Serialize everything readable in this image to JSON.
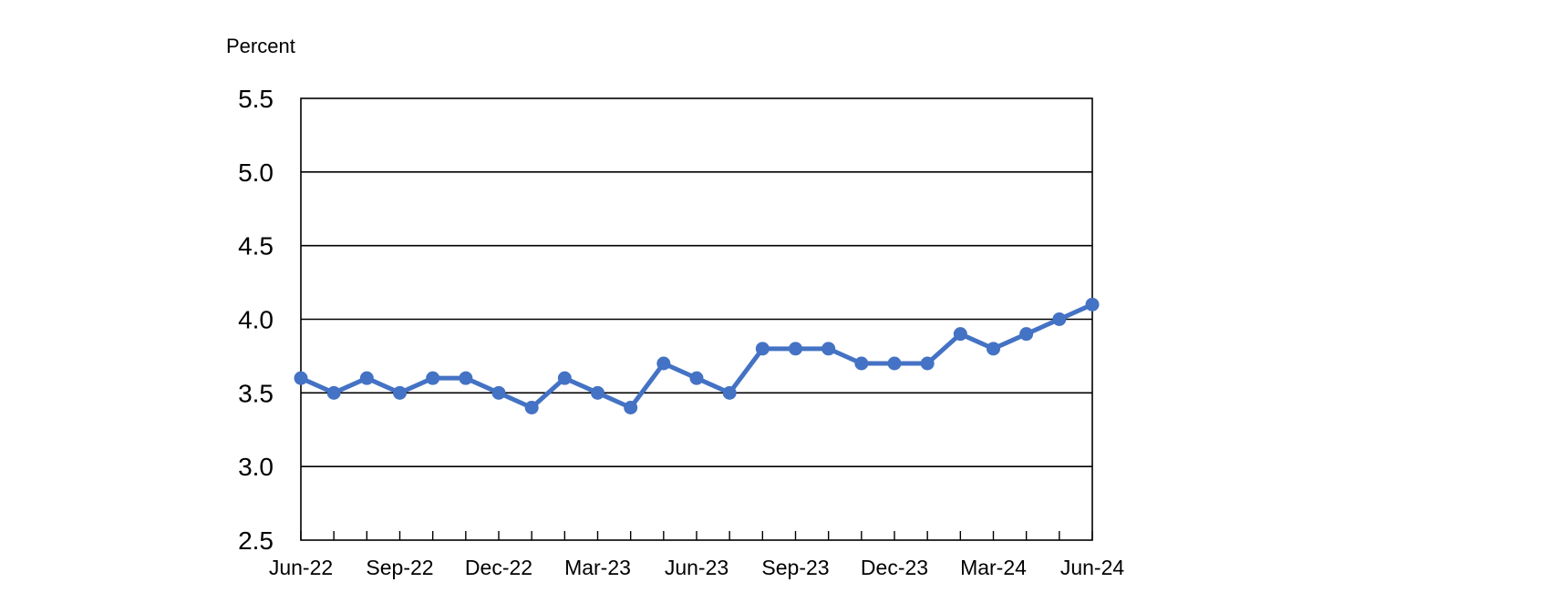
{
  "chart_data": {
    "type": "line",
    "ylabel": "Percent",
    "ylim": [
      2.5,
      5.5
    ],
    "y_ticks": [
      "5.5",
      "5.0",
      "4.5",
      "4.0",
      "3.5",
      "3.0",
      "2.5"
    ],
    "x_tick_labels": [
      "Jun-22",
      "Sep-22",
      "Dec-22",
      "Mar-23",
      "Jun-23",
      "Sep-23",
      "Dec-23",
      "Mar-24",
      "Jun-24"
    ],
    "grid": "horizontal",
    "legend": "none",
    "x": [
      "Jun-22",
      "Jul-22",
      "Aug-22",
      "Sep-22",
      "Oct-22",
      "Nov-22",
      "Dec-22",
      "Jan-23",
      "Feb-23",
      "Mar-23",
      "Apr-23",
      "May-23",
      "Jun-23",
      "Jul-23",
      "Aug-23",
      "Sep-23",
      "Oct-23",
      "Nov-23",
      "Dec-23",
      "Jan-24",
      "Feb-24",
      "Mar-24",
      "Apr-24",
      "May-24",
      "Jun-24"
    ],
    "series": [
      {
        "color": "#4472C4",
        "values": [
          3.6,
          3.5,
          3.6,
          3.5,
          3.6,
          3.6,
          3.5,
          3.4,
          3.6,
          3.5,
          3.4,
          3.7,
          3.6,
          3.5,
          3.8,
          3.8,
          3.8,
          3.7,
          3.7,
          3.7,
          3.9,
          3.8,
          3.9,
          4.0,
          4.1
        ]
      }
    ]
  }
}
